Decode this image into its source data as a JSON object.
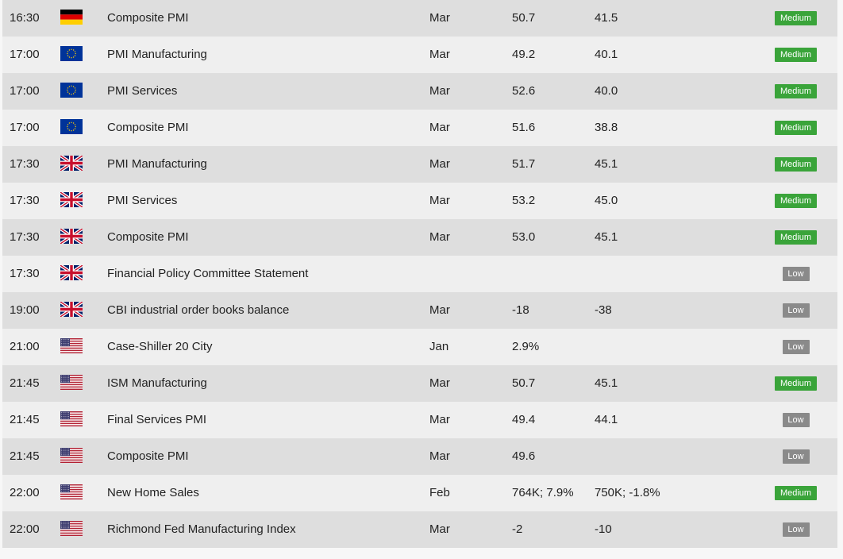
{
  "rows": [
    {
      "time": "16:30",
      "flag": "de-flag-icon",
      "event": "Composite PMI",
      "period": "Mar",
      "actual": "50.7",
      "previous": "41.5",
      "importance": "Medium"
    },
    {
      "time": "17:00",
      "flag": "eu-flag-icon",
      "event": "PMI Manufacturing",
      "period": "Mar",
      "actual": "49.2",
      "previous": "40.1",
      "importance": "Medium"
    },
    {
      "time": "17:00",
      "flag": "eu-flag-icon",
      "event": "PMI Services",
      "period": "Mar",
      "actual": "52.6",
      "previous": "40.0",
      "importance": "Medium"
    },
    {
      "time": "17:00",
      "flag": "eu-flag-icon",
      "event": "Composite PMI",
      "period": "Mar",
      "actual": "51.6",
      "previous": "38.8",
      "importance": "Medium"
    },
    {
      "time": "17:30",
      "flag": "uk-flag-icon",
      "event": "PMI Manufacturing",
      "period": "Mar",
      "actual": "51.7",
      "previous": "45.1",
      "importance": "Medium"
    },
    {
      "time": "17:30",
      "flag": "uk-flag-icon",
      "event": "PMI Services",
      "period": "Mar",
      "actual": "53.2",
      "previous": "45.0",
      "importance": "Medium"
    },
    {
      "time": "17:30",
      "flag": "uk-flag-icon",
      "event": "Composite PMI",
      "period": "Mar",
      "actual": "53.0",
      "previous": "45.1",
      "importance": "Medium"
    },
    {
      "time": "17:30",
      "flag": "uk-flag-icon",
      "event": "Financial Policy Committee Statement",
      "period": "",
      "actual": "",
      "previous": "",
      "importance": "Low"
    },
    {
      "time": "19:00",
      "flag": "uk-flag-icon",
      "event": "CBI industrial order books balance",
      "period": "Mar",
      "actual": "-18",
      "previous": "-38",
      "importance": "Low"
    },
    {
      "time": "21:00",
      "flag": "us-flag-icon",
      "event": "Case-Shiller 20 City",
      "period": "Jan",
      "actual": "2.9%",
      "previous": "",
      "importance": "Low"
    },
    {
      "time": "21:45",
      "flag": "us-flag-icon",
      "event": "ISM Manufacturing",
      "period": "Mar",
      "actual": "50.7",
      "previous": "45.1",
      "importance": "Medium"
    },
    {
      "time": "21:45",
      "flag": "us-flag-icon",
      "event": "Final Services PMI",
      "period": "Mar",
      "actual": "49.4",
      "previous": "44.1",
      "importance": "Low"
    },
    {
      "time": "21:45",
      "flag": "us-flag-icon",
      "event": "Composite PMI",
      "period": "Mar",
      "actual": "49.6",
      "previous": "",
      "importance": "Low"
    },
    {
      "time": "22:00",
      "flag": "us-flag-icon",
      "event": "New Home Sales",
      "period": "Feb",
      "actual": "764K; 7.9%",
      "previous": "750K; -1.8%",
      "importance": "Medium"
    },
    {
      "time": "22:00",
      "flag": "us-flag-icon",
      "event": "Richmond Fed Manufacturing Index",
      "period": "Mar",
      "actual": "-2",
      "previous": "-10",
      "importance": "Low"
    }
  ],
  "colors": {
    "medium": "#3aa43a",
    "low": "#8a8a8a",
    "row_odd": "#dedede",
    "row_even": "#efefef"
  }
}
